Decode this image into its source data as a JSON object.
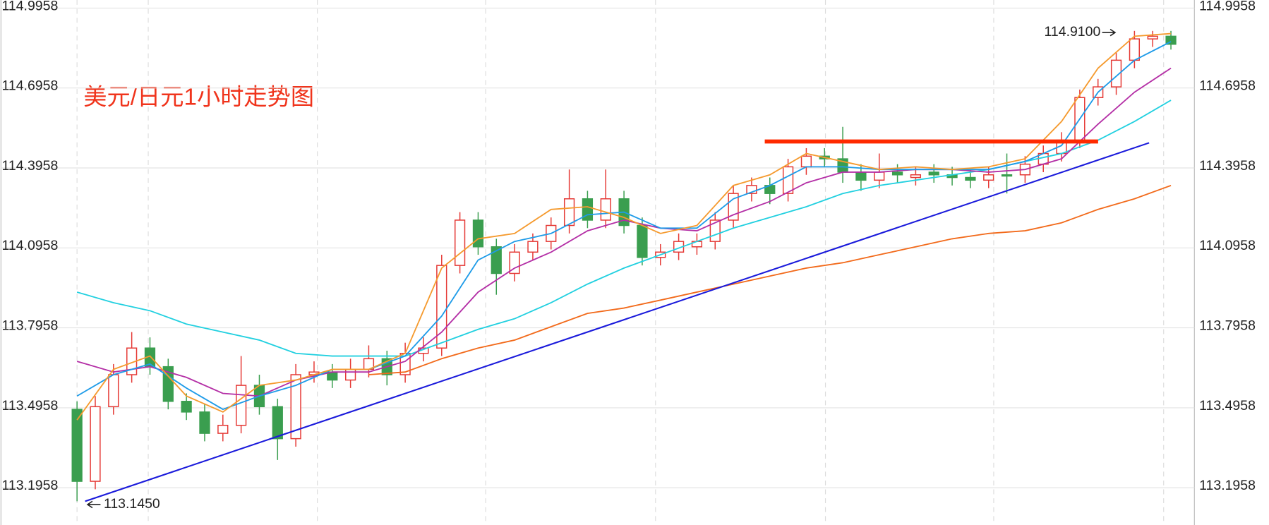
{
  "chart_data": {
    "type": "candlestick",
    "title": "美元/日元1小时走势图",
    "title_color": "#f0341c",
    "up_color": "#e53935",
    "down_color": "#3a9e4f",
    "ylim": [
      113.056,
      115.026
    ],
    "yticks": [
      113.1958,
      113.4958,
      113.7958,
      114.0958,
      114.3958,
      114.6958,
      114.9958
    ],
    "grid": true,
    "candles": {
      "open": [
        113.49,
        113.22,
        113.5,
        113.62,
        113.72,
        113.65,
        113.52,
        113.48,
        113.4,
        113.43,
        113.58,
        113.5,
        113.38,
        113.62,
        113.63,
        113.6,
        113.64,
        113.68,
        113.62,
        113.7,
        113.72,
        114.03,
        114.2,
        114.1,
        114.0,
        114.08,
        114.12,
        114.18,
        114.28,
        114.2,
        114.28,
        114.18,
        114.06,
        114.08,
        114.1,
        114.12,
        114.2,
        114.3,
        114.33,
        114.3,
        114.4,
        114.44,
        114.43,
        114.38,
        114.35,
        114.38,
        114.36,
        114.38,
        114.37,
        114.36,
        114.35,
        114.37,
        114.37,
        114.41,
        114.45,
        114.5,
        114.66,
        114.7,
        114.8,
        114.88,
        114.89
      ],
      "high": [
        113.52,
        113.54,
        113.66,
        113.78,
        113.76,
        113.68,
        113.55,
        113.51,
        113.47,
        113.69,
        113.62,
        113.53,
        113.66,
        113.67,
        113.66,
        113.68,
        113.73,
        113.71,
        113.74,
        113.76,
        114.07,
        114.23,
        114.23,
        114.13,
        114.11,
        114.15,
        114.21,
        114.39,
        114.31,
        114.39,
        114.31,
        114.21,
        114.11,
        114.15,
        114.15,
        114.23,
        114.33,
        114.36,
        114.36,
        114.43,
        114.47,
        114.47,
        114.55,
        114.41,
        114.45,
        114.41,
        114.4,
        114.41,
        114.4,
        114.39,
        114.4,
        114.45,
        114.44,
        114.48,
        114.53,
        114.69,
        114.73,
        114.83,
        114.91,
        114.91,
        114.91
      ],
      "low": [
        113.145,
        113.19,
        113.47,
        113.59,
        113.62,
        113.49,
        113.45,
        113.37,
        113.37,
        113.4,
        113.47,
        113.3,
        113.35,
        113.59,
        113.57,
        113.57,
        113.61,
        113.58,
        113.59,
        113.67,
        113.69,
        114.0,
        114.07,
        113.92,
        113.97,
        114.05,
        114.09,
        114.15,
        114.17,
        114.17,
        114.15,
        114.03,
        114.03,
        114.05,
        114.07,
        114.09,
        114.17,
        114.27,
        114.26,
        114.27,
        114.37,
        114.4,
        114.34,
        114.31,
        114.32,
        114.34,
        114.33,
        114.34,
        114.33,
        114.32,
        114.32,
        114.3,
        114.34,
        114.38,
        114.42,
        114.47,
        114.63,
        114.67,
        114.77,
        114.85,
        114.84
      ],
      "close": [
        113.22,
        113.5,
        113.62,
        113.72,
        113.65,
        113.52,
        113.48,
        113.4,
        113.43,
        113.58,
        113.5,
        113.38,
        113.62,
        113.63,
        113.6,
        113.64,
        113.68,
        113.62,
        113.7,
        113.72,
        114.03,
        114.2,
        114.1,
        114.0,
        114.08,
        114.12,
        114.18,
        114.28,
        114.2,
        114.28,
        114.18,
        114.06,
        114.08,
        114.12,
        114.12,
        114.2,
        114.3,
        114.33,
        114.3,
        114.4,
        114.44,
        114.43,
        114.38,
        114.35,
        114.38,
        114.37,
        114.37,
        114.37,
        114.36,
        114.35,
        114.37,
        114.37,
        114.41,
        114.45,
        114.5,
        114.66,
        114.7,
        114.8,
        114.88,
        114.89,
        114.86
      ]
    },
    "series": [
      {
        "color": "#22d0e0",
        "values": [
          113.93,
          113.89,
          113.86,
          113.81,
          113.78,
          113.75,
          113.7,
          113.69,
          113.69,
          113.69,
          113.74,
          113.79,
          113.83,
          113.89,
          113.96,
          114.02,
          114.07,
          114.12,
          114.17,
          114.21,
          114.25,
          114.3,
          114.33,
          114.35,
          114.37,
          114.39,
          114.42,
          114.45,
          114.5,
          114.57,
          114.65
        ]
      },
      {
        "color": "#f26a1b",
        "values": [
          null,
          null,
          null,
          null,
          null,
          null,
          null,
          null,
          113.62,
          113.63,
          113.68,
          113.72,
          113.75,
          113.8,
          113.85,
          113.87,
          113.9,
          113.93,
          113.96,
          113.99,
          114.02,
          114.04,
          114.07,
          114.1,
          114.13,
          114.15,
          114.16,
          114.19,
          114.24,
          114.28,
          114.33
        ]
      },
      {
        "color": "#b42fa6",
        "values": [
          113.67,
          113.63,
          113.65,
          113.61,
          113.55,
          113.54,
          113.6,
          113.63,
          113.63,
          113.67,
          113.78,
          113.93,
          114.02,
          114.08,
          114.16,
          114.2,
          114.17,
          114.16,
          114.22,
          114.27,
          114.34,
          114.38,
          114.38,
          114.39,
          114.39,
          114.38,
          114.39,
          114.43,
          114.56,
          114.68,
          114.77
        ]
      },
      {
        "color": "#1e9be8",
        "values": [
          113.54,
          113.62,
          113.66,
          113.57,
          113.49,
          113.54,
          113.58,
          113.64,
          113.64,
          113.69,
          113.84,
          114.05,
          114.12,
          114.15,
          114.22,
          114.23,
          114.17,
          114.17,
          114.28,
          114.33,
          114.4,
          114.4,
          114.39,
          114.39,
          114.39,
          114.39,
          114.42,
          114.48,
          114.68,
          114.8,
          114.87
        ]
      },
      {
        "color": "#f59a2e",
        "values": [
          113.45,
          113.64,
          113.69,
          113.54,
          113.48,
          113.58,
          113.6,
          113.64,
          113.64,
          113.7,
          114.02,
          114.13,
          114.15,
          114.24,
          114.25,
          114.21,
          114.15,
          114.18,
          114.33,
          114.37,
          114.45,
          114.42,
          114.39,
          114.4,
          114.39,
          114.4,
          114.43,
          114.57,
          114.77,
          114.89,
          114.9
        ]
      }
    ],
    "lines": [
      {
        "color": "#ff2a00",
        "values": [
          114.495,
          114.495
        ]
      },
      {
        "color": "#1a1adb",
        "values": [
          113.145,
          114.49
        ]
      }
    ],
    "annotations": [
      {
        "value": 114.91,
        "label": "114.9100"
      },
      {
        "value": 113.145,
        "label": "113.1450"
      }
    ]
  }
}
